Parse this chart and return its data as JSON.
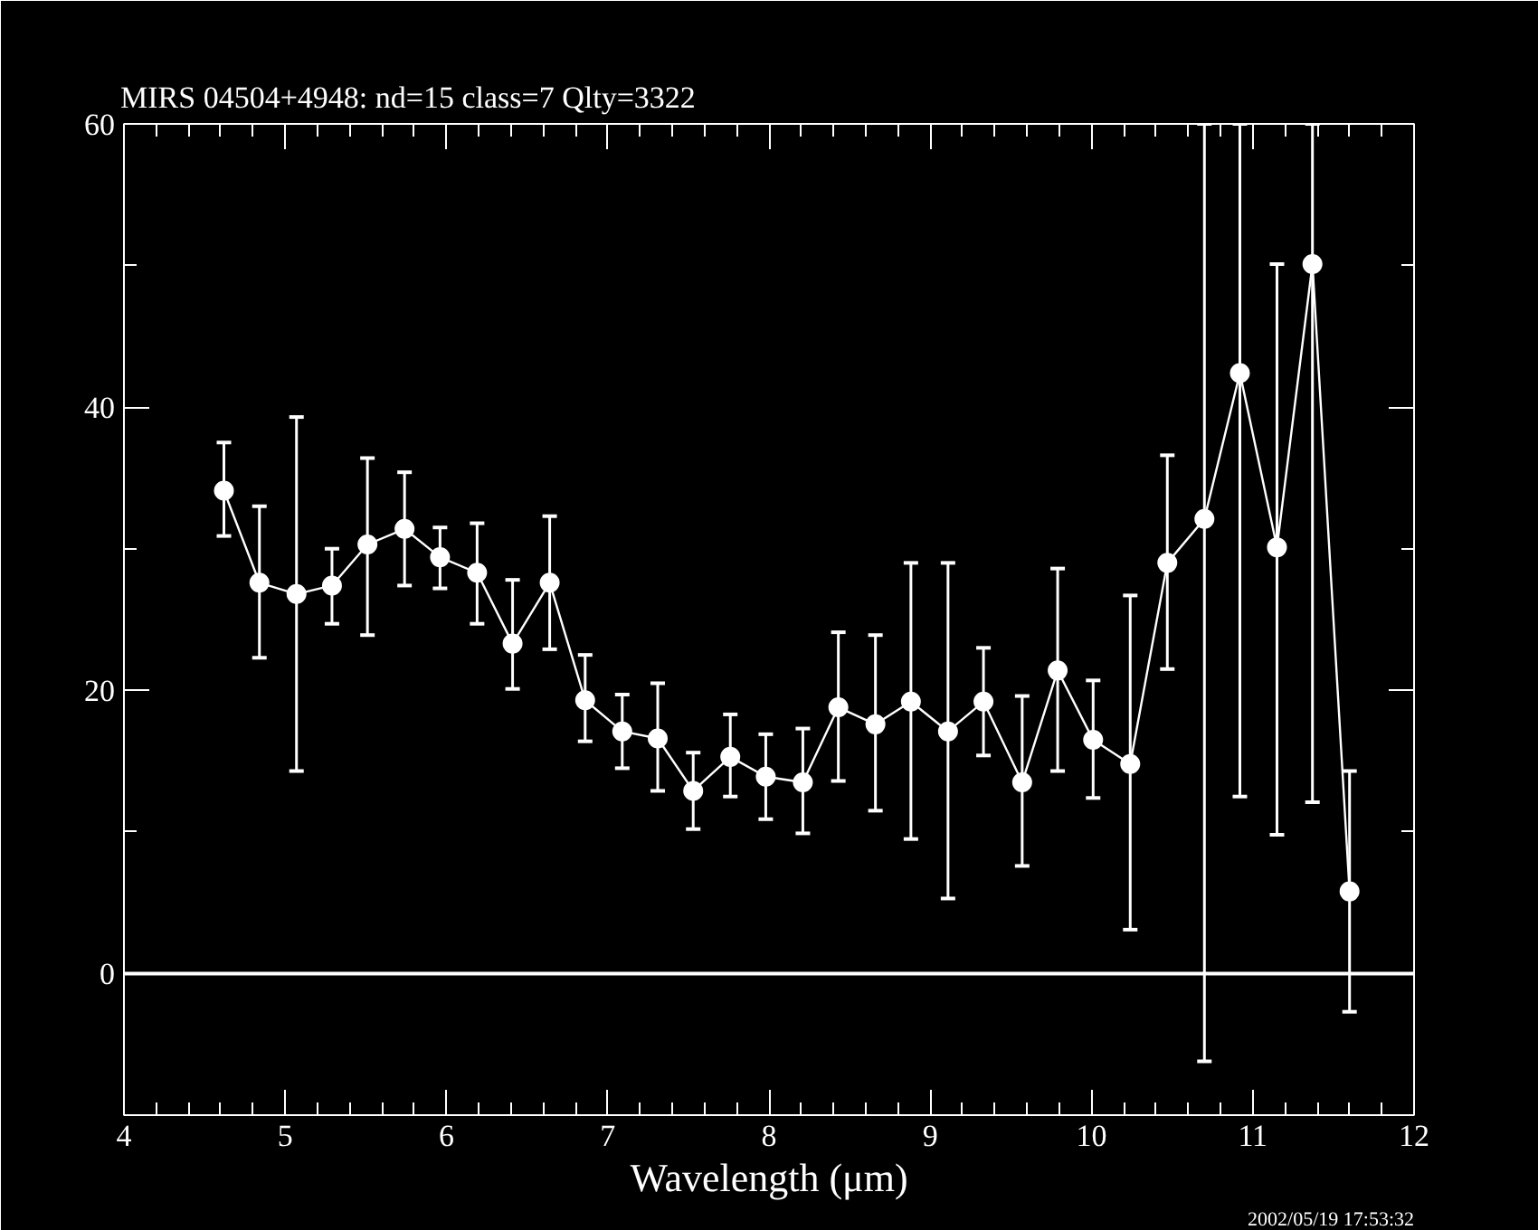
{
  "chart_data": {
    "type": "line",
    "title": "MIRS 04504+4948: nd=15 class=7 Qlty=3322",
    "xlabel": "Wavelength (μm)",
    "annotations": [
      "2002/05/19 17:53:32"
    ],
    "x": [
      4.62,
      4.84,
      5.07,
      5.29,
      5.51,
      5.74,
      5.96,
      6.19,
      6.41,
      6.64,
      6.86,
      7.09,
      7.31,
      7.53,
      7.76,
      7.98,
      8.21,
      8.43,
      8.66,
      8.88,
      9.11,
      9.33,
      9.57,
      9.79,
      10.01,
      10.24,
      10.47,
      10.7,
      10.92,
      11.15,
      11.37,
      11.6
    ],
    "series": [
      {
        "color": "#ffffff",
        "values": [
          34.1,
          27.6,
          26.8,
          27.4,
          30.3,
          31.4,
          29.4,
          28.3,
          23.3,
          27.6,
          19.3,
          17.1,
          16.6,
          12.9,
          15.3,
          13.9,
          13.5,
          18.8,
          17.6,
          19.2,
          17.1,
          19.2,
          13.5,
          21.4,
          16.5,
          14.8,
          29.0,
          32.1,
          42.4,
          30.1,
          50.1,
          5.8
        ],
        "errors": [
          [
            30.9,
            37.5
          ],
          [
            22.3,
            33.0
          ],
          [
            14.3,
            39.3
          ],
          [
            24.7,
            30.0
          ],
          [
            23.9,
            36.4
          ],
          [
            27.4,
            35.4
          ],
          [
            27.2,
            31.5
          ],
          [
            24.7,
            31.8
          ],
          [
            20.1,
            27.8
          ],
          [
            22.9,
            32.3
          ],
          [
            16.4,
            22.5
          ],
          [
            14.5,
            19.7
          ],
          [
            12.9,
            20.5
          ],
          [
            10.2,
            15.6
          ],
          [
            12.5,
            18.3
          ],
          [
            10.9,
            16.9
          ],
          [
            9.9,
            17.3
          ],
          [
            13.6,
            24.1
          ],
          [
            11.5,
            23.9
          ],
          [
            9.5,
            29.0
          ],
          [
            5.3,
            29.0
          ],
          [
            15.4,
            23.0
          ],
          [
            7.6,
            19.6
          ],
          [
            14.3,
            28.6
          ],
          [
            12.4,
            20.7
          ],
          [
            3.1,
            26.7
          ],
          [
            21.5,
            36.6
          ],
          [
            -6.2,
            60
          ],
          [
            12.5,
            60
          ],
          [
            9.8,
            50.1
          ],
          [
            12.1,
            60
          ],
          [
            -2.7,
            14.3
          ]
        ]
      }
    ],
    "xlim": [
      4,
      12
    ],
    "ylim": [
      -10,
      60
    ],
    "xticks": [
      4,
      5,
      6,
      7,
      8,
      9,
      10,
      11,
      12
    ],
    "yticks": [
      0,
      20,
      40,
      60
    ],
    "ref_lines": [
      {
        "axis": "y",
        "value": 0,
        "color": "#ffffff",
        "line_style": "solid"
      }
    ],
    "marker": "circle",
    "line_style": "solid",
    "grid": false
  }
}
